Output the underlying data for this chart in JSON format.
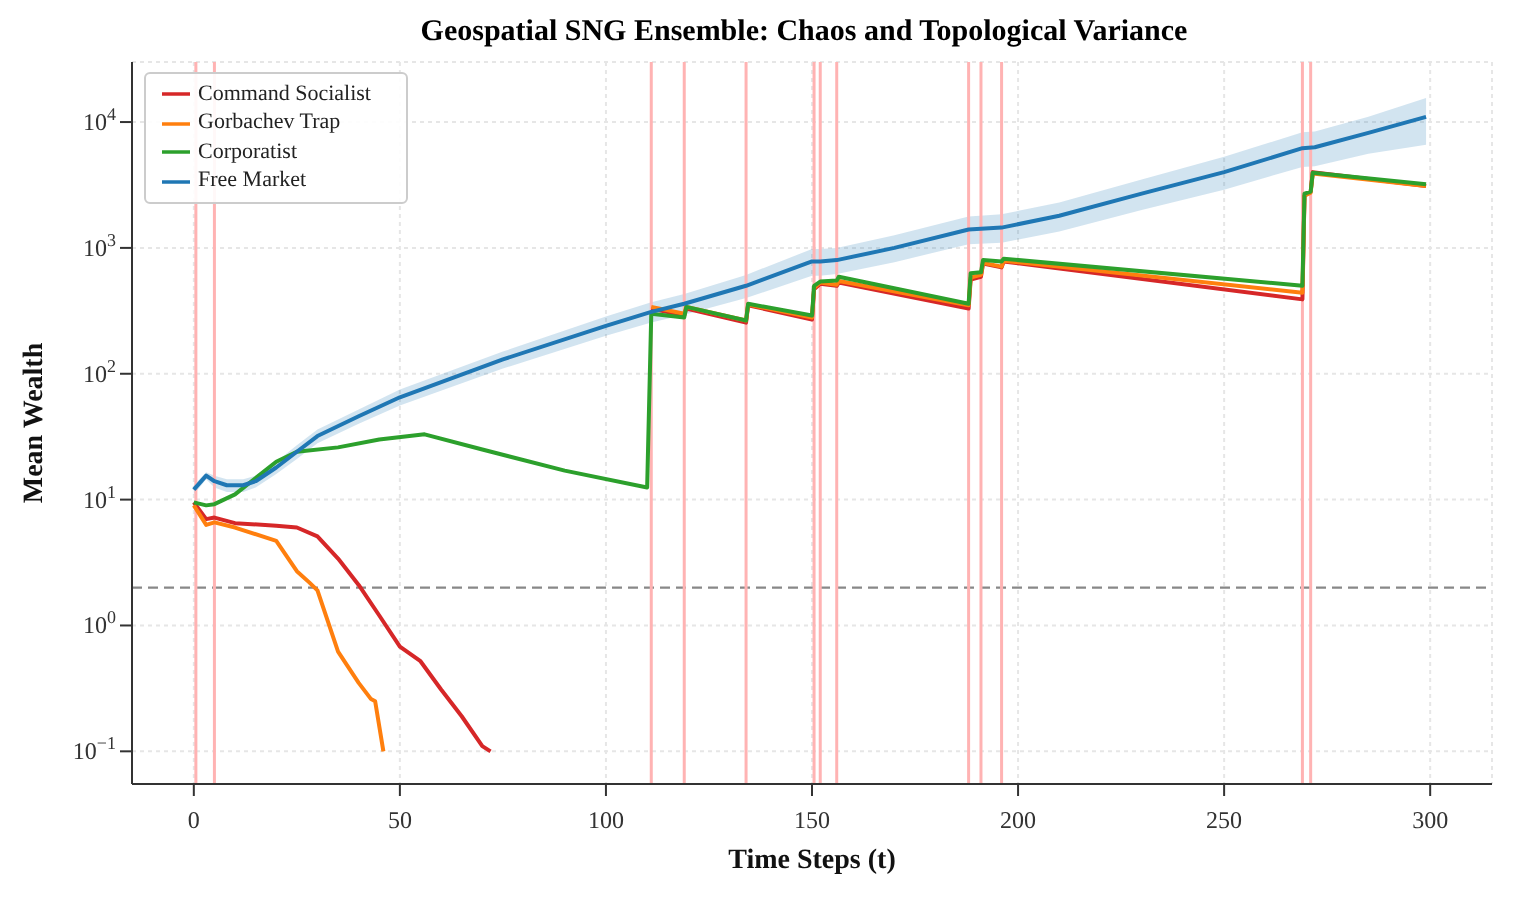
{
  "chart_data": {
    "type": "line",
    "title": "Geospatial SNG Ensemble: Chaos and Topological Variance",
    "xlabel": "Time Steps (t)",
    "ylabel": "Mean Wealth",
    "log": "y",
    "grid": true,
    "legend": "top left",
    "xlim": [
      -15,
      315
    ],
    "xticks": [
      0,
      50,
      100,
      150,
      200,
      250,
      300
    ],
    "ylim": [
      0.055,
      30000
    ],
    "yticks": [
      {
        "value": 0.1,
        "label": "10$^{−1}$"
      },
      {
        "value": 1,
        "label": "10$^{0}$"
      },
      {
        "value": 10,
        "label": "10$^{1}$"
      },
      {
        "value": 100,
        "label": "10$^{2}$"
      },
      {
        "value": 1000,
        "label": "10$^{3}$"
      },
      {
        "value": 10000,
        "label": "10$^{4}$"
      }
    ],
    "series": [
      {
        "name": "Command Socialist",
        "color": "#d62728",
        "x": [
          0,
          3,
          5,
          10,
          20,
          25,
          30,
          35,
          40,
          45,
          50,
          55,
          60,
          65,
          70,
          72,
          90,
          111,
          119,
          119.5,
          134,
          134.5,
          150,
          150.5,
          152,
          156,
          156.5,
          188,
          188.5,
          191,
          191.5,
          196,
          196.5,
          269,
          269.5,
          271,
          271.5,
          299
        ],
        "values": [
          9.5,
          7,
          7.2,
          6.5,
          6.2,
          6,
          5.1,
          3.4,
          2.1,
          1.2,
          0.68,
          0.52,
          0.31,
          0.19,
          0.11,
          0.1,
          null,
          330,
          290,
          330,
          255,
          350,
          270,
          470,
          520,
          500,
          530,
          330,
          560,
          590,
          750,
          700,
          780,
          390,
          2600,
          2800,
          4000,
          3100
        ]
      },
      {
        "name": "Gorbachev Trap",
        "color": "#ff7f0e",
        "x": [
          0,
          3,
          5,
          10,
          20,
          25,
          28,
          30,
          35,
          40,
          43,
          44,
          46,
          90,
          111,
          119,
          119.5,
          134,
          134.5,
          150,
          150.5,
          152,
          156,
          156.5,
          188,
          188.5,
          191,
          191.5,
          196,
          196.5,
          269,
          269.5,
          271,
          271.5,
          299
        ],
        "values": [
          9,
          6.3,
          6.6,
          6,
          4.7,
          2.7,
          2.2,
          1.9,
          0.62,
          0.35,
          0.26,
          0.25,
          0.1,
          null,
          340,
          300,
          340,
          265,
          355,
          280,
          480,
          530,
          510,
          545,
          350,
          580,
          610,
          760,
          710,
          790,
          440,
          2600,
          2750,
          3900,
          3100
        ]
      },
      {
        "name": "Corporatist",
        "color": "#2ca02c",
        "x": [
          0,
          3,
          5,
          10,
          20,
          25,
          35,
          45,
          56,
          70,
          90,
          110,
          111,
          119,
          119.5,
          134,
          134.5,
          150,
          150.5,
          152,
          156,
          156.5,
          188,
          188.5,
          191,
          191.5,
          196,
          196.5,
          269,
          269.5,
          271,
          271.5,
          299
        ],
        "values": [
          9.5,
          9,
          9.2,
          11,
          20,
          24,
          26,
          30,
          33,
          25,
          17,
          12.5,
          300,
          280,
          340,
          265,
          360,
          290,
          500,
          540,
          550,
          590,
          360,
          630,
          640,
          800,
          780,
          820,
          500,
          2700,
          2800,
          3950,
          3200
        ]
      },
      {
        "name": "Free Market",
        "color": "#1f77b4",
        "x": [
          0,
          3,
          5,
          8,
          12,
          15,
          20,
          25,
          30,
          40,
          50,
          75,
          100,
          111,
          119,
          134,
          150,
          152,
          156,
          170,
          188,
          196,
          210,
          230,
          250,
          269,
          272,
          285,
          299
        ],
        "values": [
          12,
          15.5,
          14,
          13,
          13,
          14,
          18,
          24,
          32,
          46,
          65,
          130,
          240,
          310,
          360,
          500,
          780,
          780,
          800,
          1000,
          1400,
          1450,
          1800,
          2700,
          4000,
          6200,
          6300,
          8200,
          11000
        ],
        "lower": [
          11,
          14.5,
          12.5,
          11.5,
          11.5,
          12.5,
          16,
          21,
          28,
          40,
          56,
          110,
          200,
          255,
          295,
          400,
          600,
          600,
          620,
          770,
          1070,
          1100,
          1350,
          2000,
          2900,
          4400,
          4450,
          5600,
          6600
        ],
        "upper": [
          13,
          16.5,
          15.5,
          14.5,
          14.5,
          15.5,
          20,
          27,
          36,
          52,
          75,
          150,
          285,
          370,
          430,
          610,
          980,
          980,
          1000,
          1260,
          1780,
          1850,
          2300,
          3500,
          5300,
          8300,
          8400,
          11000,
          15500
        ]
      }
    ],
    "ref_lines": [
      {
        "axis": "y",
        "value": 2,
        "color": "#888888",
        "line_style": "dashed"
      },
      {
        "axis": "x",
        "value": 0.5,
        "color": "#ffb3b3"
      },
      {
        "axis": "x",
        "value": 5,
        "color": "#ffb3b3"
      },
      {
        "axis": "x",
        "value": 111,
        "color": "#ffb3b3"
      },
      {
        "axis": "x",
        "value": 119,
        "color": "#ffb3b3"
      },
      {
        "axis": "x",
        "value": 134,
        "color": "#ffb3b3"
      },
      {
        "axis": "x",
        "value": 150.5,
        "color": "#ffb3b3"
      },
      {
        "axis": "x",
        "value": 152,
        "color": "#ffb3b3"
      },
      {
        "axis": "x",
        "value": 156,
        "color": "#ffb3b3"
      },
      {
        "axis": "x",
        "value": 188,
        "color": "#ffb3b3"
      },
      {
        "axis": "x",
        "value": 191,
        "color": "#ffb3b3"
      },
      {
        "axis": "x",
        "value": 196,
        "color": "#ffb3b3"
      },
      {
        "axis": "x",
        "value": 269,
        "color": "#ffb3b3"
      },
      {
        "axis": "x",
        "value": 271,
        "color": "#ffb3b3"
      }
    ]
  }
}
